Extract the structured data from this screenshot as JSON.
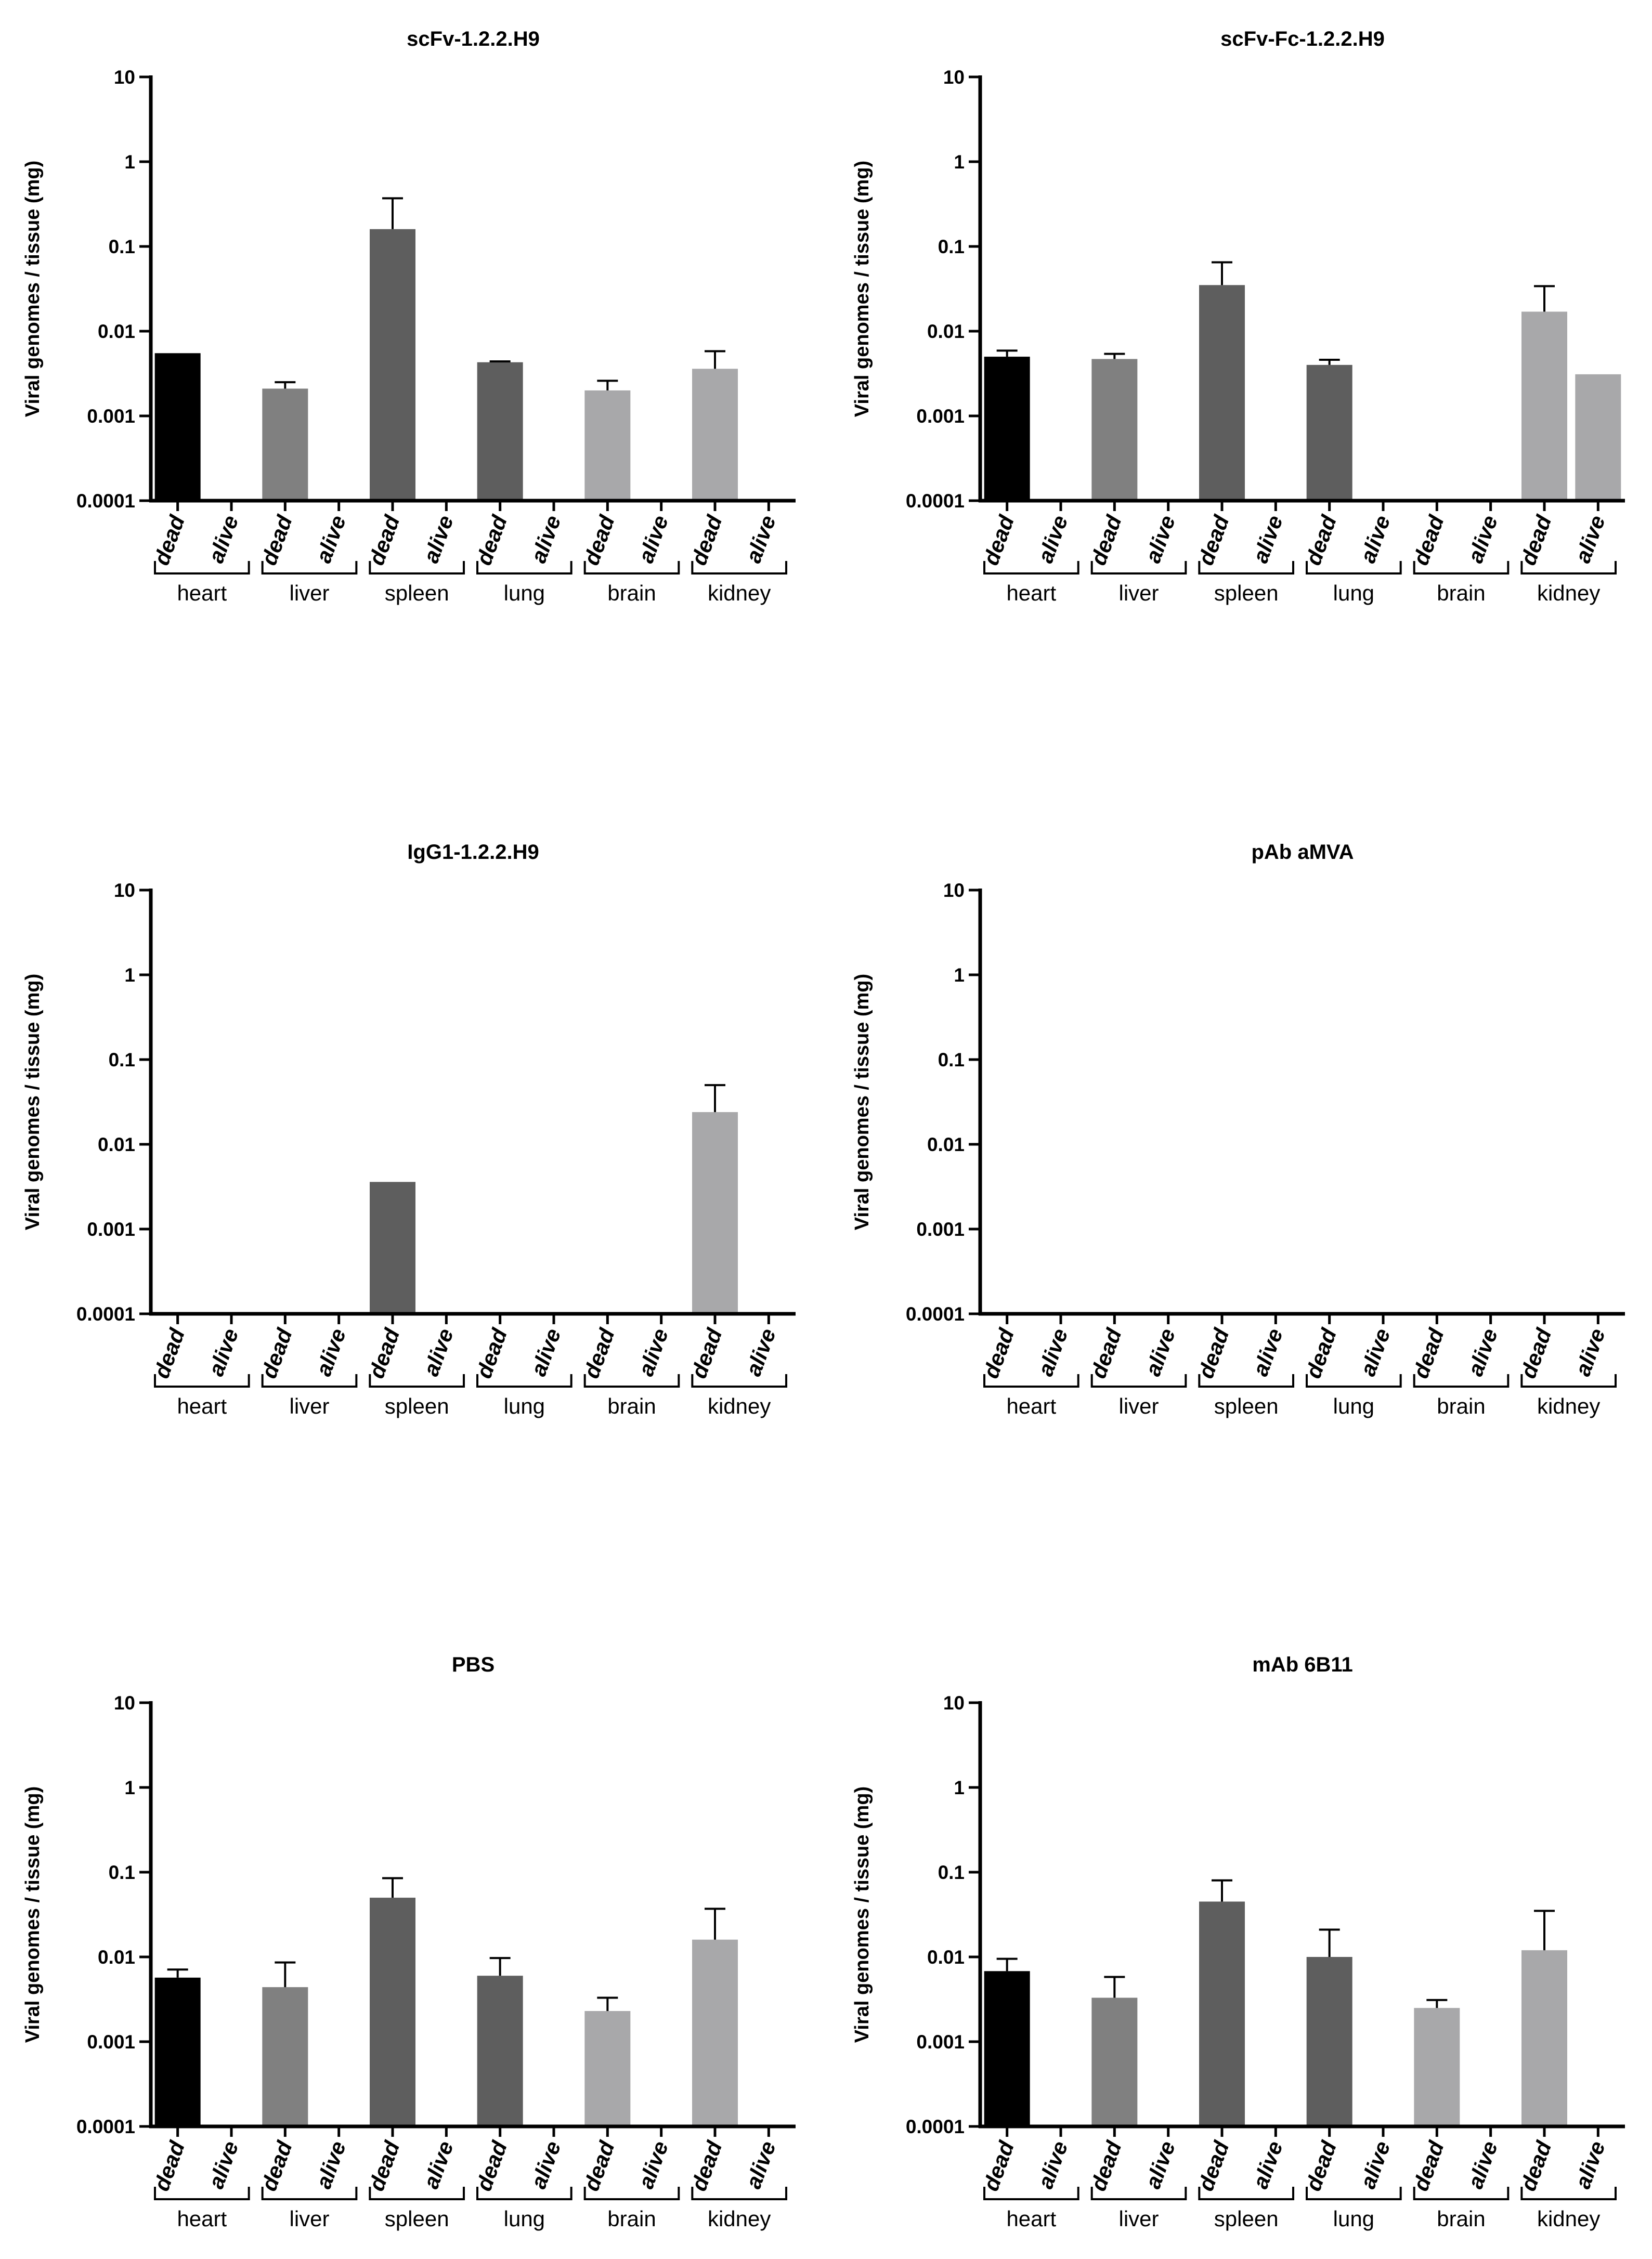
{
  "figure": {
    "ylabel": "Viral genomes / tissue (mg)",
    "tissues": [
      "heart",
      "liver",
      "spleen",
      "lung",
      "brain",
      "kidney"
    ],
    "groups": [
      "dead",
      "alive"
    ],
    "yticks": [
      "10",
      "1",
      "0.1",
      "0.01",
      "0.001",
      "0.0001"
    ],
    "tissue_colors": {
      "heart": "#000000",
      "liver": "#808080",
      "spleen": "#5e5e5e",
      "lung": "#5e5e5e",
      "brain": "#a8a8aa",
      "kidney": "#a8a8aa"
    }
  },
  "chart_data": [
    {
      "type": "bar",
      "title": "scFv-1.2.2.H9",
      "ylabel": "Viral genomes / tissue (mg)",
      "yscale": "log",
      "ylim": [
        0.0001,
        10
      ],
      "categories": [
        "heart",
        "liver",
        "spleen",
        "lung",
        "brain",
        "kidney"
      ],
      "series": [
        {
          "name": "dead",
          "values": [
            0.0055,
            0.0021,
            0.16,
            0.0043,
            0.002,
            0.0036
          ],
          "error": [
            null,
            0.0025,
            0.37,
            0.0044,
            0.0026,
            0.0058
          ]
        },
        {
          "name": "alive",
          "values": [
            null,
            null,
            null,
            null,
            null,
            null
          ],
          "error": [
            null,
            null,
            null,
            null,
            null,
            null
          ]
        }
      ]
    },
    {
      "type": "bar",
      "title": "scFv-Fc-1.2.2.H9",
      "ylabel": "Viral genomes / tissue (mg)",
      "yscale": "log",
      "ylim": [
        0.0001,
        10
      ],
      "categories": [
        "heart",
        "liver",
        "spleen",
        "lung",
        "brain",
        "kidney"
      ],
      "series": [
        {
          "name": "dead",
          "values": [
            0.005,
            0.0047,
            0.035,
            0.004,
            null,
            0.017
          ],
          "error": [
            0.0059,
            0.0054,
            0.065,
            0.0046,
            null,
            0.034
          ]
        },
        {
          "name": "alive",
          "values": [
            null,
            null,
            null,
            null,
            null,
            0.0031
          ],
          "error": [
            null,
            null,
            null,
            null,
            null,
            null
          ]
        }
      ]
    },
    {
      "type": "bar",
      "title": "IgG1-1.2.2.H9",
      "ylabel": "Viral genomes / tissue (mg)",
      "yscale": "log",
      "ylim": [
        0.0001,
        10
      ],
      "categories": [
        "heart",
        "liver",
        "spleen",
        "lung",
        "brain",
        "kidney"
      ],
      "series": [
        {
          "name": "dead",
          "values": [
            null,
            null,
            0.0036,
            null,
            null,
            0.024
          ],
          "error": [
            null,
            null,
            null,
            null,
            null,
            0.05
          ]
        },
        {
          "name": "alive",
          "values": [
            null,
            null,
            null,
            null,
            null,
            null
          ],
          "error": [
            null,
            null,
            null,
            null,
            null,
            null
          ]
        }
      ]
    },
    {
      "type": "bar",
      "title": "pAb aMVA",
      "ylabel": "Viral genomes / tissue (mg)",
      "yscale": "log",
      "ylim": [
        0.0001,
        10
      ],
      "categories": [
        "heart",
        "liver",
        "spleen",
        "lung",
        "brain",
        "kidney"
      ],
      "series": [
        {
          "name": "dead",
          "values": [
            null,
            null,
            null,
            null,
            null,
            null
          ],
          "error": [
            null,
            null,
            null,
            null,
            null,
            null
          ]
        },
        {
          "name": "alive",
          "values": [
            null,
            null,
            null,
            null,
            null,
            null
          ],
          "error": [
            null,
            null,
            null,
            null,
            null,
            null
          ]
        }
      ]
    },
    {
      "type": "bar",
      "title": "PBS",
      "ylabel": "Viral genomes / tissue (mg)",
      "yscale": "log",
      "ylim": [
        0.0001,
        10
      ],
      "categories": [
        "heart",
        "liver",
        "spleen",
        "lung",
        "brain",
        "kidney"
      ],
      "series": [
        {
          "name": "dead",
          "values": [
            0.0057,
            0.0044,
            0.05,
            0.006,
            0.0023,
            0.016
          ],
          "error": [
            0.0071,
            0.0086,
            0.085,
            0.0097,
            0.0033,
            0.037
          ]
        },
        {
          "name": "alive",
          "values": [
            null,
            null,
            null,
            null,
            null,
            null
          ],
          "error": [
            null,
            null,
            null,
            null,
            null,
            null
          ]
        }
      ]
    },
    {
      "type": "bar",
      "title": "mAb 6B11",
      "ylabel": "Viral genomes / tissue (mg)",
      "yscale": "log",
      "ylim": [
        0.0001,
        10
      ],
      "categories": [
        "heart",
        "liver",
        "spleen",
        "lung",
        "brain",
        "kidney"
      ],
      "series": [
        {
          "name": "dead",
          "values": [
            0.0068,
            0.0033,
            0.045,
            0.01,
            0.0025,
            0.012
          ],
          "error": [
            0.0095,
            0.0058,
            0.08,
            0.021,
            0.0031,
            0.035
          ]
        },
        {
          "name": "alive",
          "values": [
            null,
            null,
            null,
            null,
            null,
            null
          ],
          "error": [
            null,
            null,
            null,
            null,
            null,
            null
          ]
        }
      ]
    }
  ]
}
